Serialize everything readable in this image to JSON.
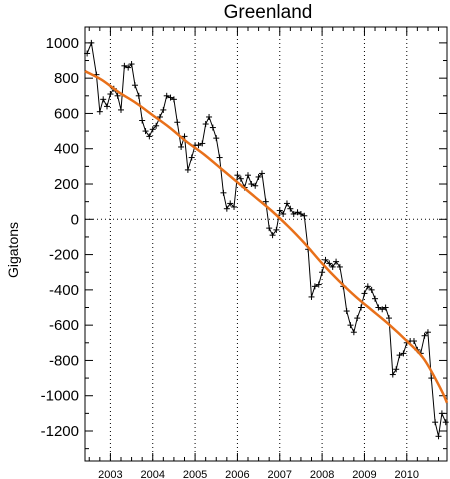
{
  "chart_data": {
    "type": "line",
    "title": "Greenland",
    "ylabel": "Gigatons",
    "xlabel": "",
    "xlim": [
      2002.4,
      2010.95
    ],
    "ylim": [
      -1370,
      1090
    ],
    "yticks": [
      1000,
      800,
      600,
      400,
      200,
      0,
      -200,
      -400,
      -600,
      -800,
      -1000,
      -1200
    ],
    "xticks": [
      2003,
      2004,
      2005,
      2006,
      2007,
      2008,
      2009,
      2010
    ],
    "grid": "dotted vertical lines at each year and dotted horizontal line at 0",
    "series": [
      {
        "style": "black line with plus markers",
        "color": "#000000",
        "x": [
          2002.45,
          2002.55,
          2002.67,
          2002.75,
          2002.83,
          2002.92,
          2003.0,
          2003.08,
          2003.17,
          2003.25,
          2003.33,
          2003.42,
          2003.5,
          2003.58,
          2003.67,
          2003.75,
          2003.83,
          2003.92,
          2004.0,
          2004.08,
          2004.17,
          2004.25,
          2004.33,
          2004.42,
          2004.5,
          2004.58,
          2004.67,
          2004.75,
          2004.83,
          2004.92,
          2005.0,
          2005.08,
          2005.17,
          2005.25,
          2005.33,
          2005.42,
          2005.5,
          2005.58,
          2005.67,
          2005.75,
          2005.83,
          2005.92,
          2006.0,
          2006.08,
          2006.17,
          2006.25,
          2006.33,
          2006.42,
          2006.5,
          2006.58,
          2006.67,
          2006.75,
          2006.83,
          2006.92,
          2007.0,
          2007.08,
          2007.17,
          2007.25,
          2007.33,
          2007.42,
          2007.5,
          2007.58,
          2007.67,
          2007.75,
          2007.83,
          2007.92,
          2008.0,
          2008.08,
          2008.17,
          2008.25,
          2008.33,
          2008.42,
          2008.5,
          2008.58,
          2008.67,
          2008.75,
          2008.83,
          2008.92,
          2009.0,
          2009.08,
          2009.17,
          2009.25,
          2009.33,
          2009.42,
          2009.5,
          2009.58,
          2009.67,
          2009.75,
          2009.83,
          2009.92,
          2010.0,
          2010.08,
          2010.17,
          2010.25,
          2010.33,
          2010.42,
          2010.5,
          2010.58,
          2010.67,
          2010.75,
          2010.83,
          2010.92
        ],
        "y": [
          940,
          1000,
          820,
          610,
          680,
          640,
          710,
          740,
          700,
          620,
          870,
          860,
          880,
          760,
          700,
          560,
          500,
          470,
          510,
          530,
          580,
          620,
          700,
          690,
          680,
          550,
          410,
          470,
          280,
          350,
          420,
          420,
          430,
          540,
          580,
          520,
          460,
          350,
          150,
          60,
          90,
          70,
          250,
          230,
          180,
          250,
          200,
          190,
          240,
          260,
          100,
          -50,
          -90,
          -60,
          50,
          30,
          90,
          60,
          30,
          40,
          30,
          20,
          -170,
          -440,
          -380,
          -370,
          -300,
          -230,
          -250,
          -270,
          -240,
          -270,
          -380,
          -520,
          -600,
          -640,
          -560,
          -500,
          -420,
          -380,
          -400,
          -450,
          -500,
          -510,
          -500,
          -560,
          -880,
          -850,
          -770,
          -760,
          -700,
          -690,
          -690,
          -740,
          -760,
          -660,
          -640,
          -900,
          -1150,
          -1230,
          -1100,
          -1150
        ]
      },
      {
        "style": "orange smooth trend",
        "color": "#e8701a",
        "x": [
          2002.4,
          2002.8,
          2003.2,
          2003.6,
          2004.0,
          2004.4,
          2004.8,
          2005.2,
          2005.6,
          2006.0,
          2006.4,
          2006.8,
          2007.2,
          2007.6,
          2008.0,
          2008.4,
          2008.8,
          2009.2,
          2009.6,
          2010.0,
          2010.4,
          2010.8,
          2010.95
        ],
        "y": [
          840,
          790,
          720,
          660,
          590,
          520,
          440,
          370,
          290,
          210,
          130,
          50,
          -40,
          -140,
          -250,
          -350,
          -440,
          -520,
          -600,
          -690,
          -790,
          -960,
          -1040
        ]
      }
    ]
  }
}
